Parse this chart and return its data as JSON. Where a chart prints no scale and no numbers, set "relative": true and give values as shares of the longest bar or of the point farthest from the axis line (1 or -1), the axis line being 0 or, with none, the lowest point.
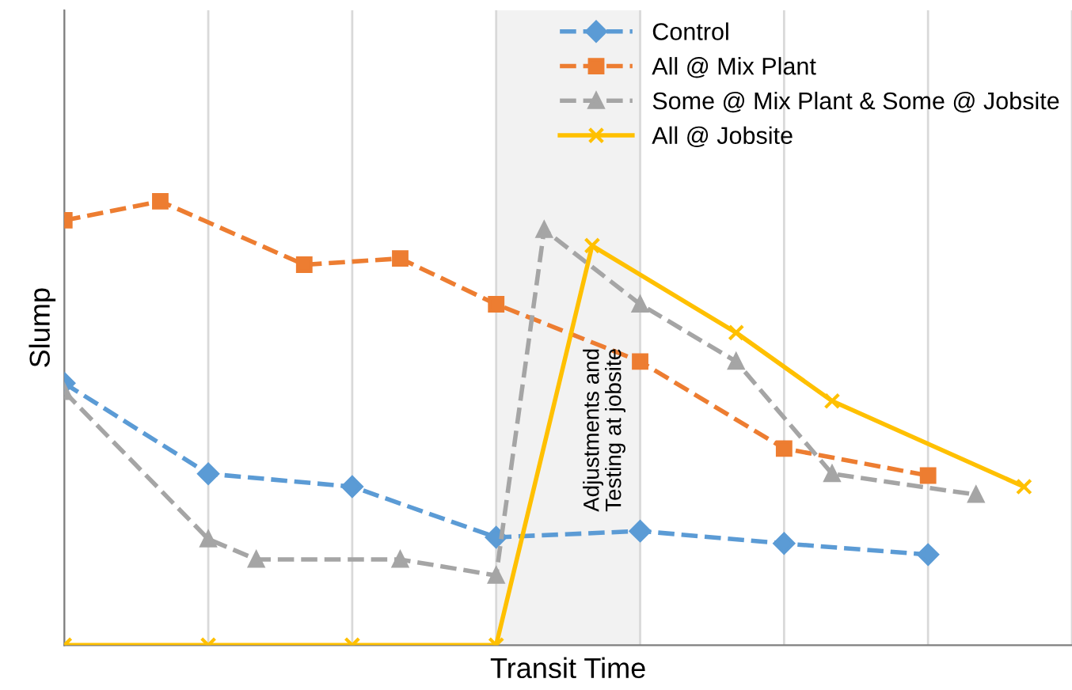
{
  "chart_data": {
    "type": "line",
    "relative": true,
    "xlabel": "Transit Time",
    "ylabel": "Slump",
    "categories": [
      null,
      null,
      null,
      null,
      null,
      null,
      null,
      null,
      null,
      null,
      null,
      null,
      null,
      null,
      null,
      null,
      null,
      null,
      null,
      null,
      null,
      null
    ],
    "grid": "x",
    "legend": "top right",
    "annotations": [
      "Adjustments and Testing at jobsite"
    ],
    "series": [
      {
        "name": "Control",
        "color": "#5b9bd5",
        "marker": "diamond",
        "line_style": "dashed",
        "values": [
          0.59,
          null,
          null,
          0.386,
          null,
          null,
          0.357,
          null,
          null,
          0.243,
          null,
          null,
          0.257,
          null,
          null,
          0.229,
          null,
          null,
          0.204,
          null,
          null,
          null
        ]
      },
      {
        "name": "All @ Mix Plant",
        "color": "#ed7d31",
        "marker": "square",
        "line_style": "dashed",
        "values": [
          0.957,
          null,
          1,
          null,
          null,
          0.857,
          null,
          0.871,
          null,
          0.768,
          null,
          null,
          0.639,
          null,
          null,
          0.443,
          null,
          null,
          0.382,
          null,
          null,
          null
        ]
      },
      {
        "name": "Some @ Mix Plant & Some @ Jobsite",
        "color": "#a5a5a5",
        "marker": "triangle",
        "line_style": "dashed",
        "values": [
          0.571,
          null,
          null,
          0.239,
          0.193,
          null,
          null,
          0.193,
          null,
          0.157,
          0.936,
          null,
          0.768,
          null,
          0.639,
          null,
          0.386,
          null,
          null,
          0.339,
          null,
          null
        ]
      },
      {
        "name": "All @ Jobsite",
        "color": "#ffc000",
        "marker": "cross",
        "line_style": "solid",
        "values": [
          0,
          null,
          null,
          0,
          null,
          null,
          0,
          null,
          null,
          0,
          null,
          0.9,
          null,
          null,
          0.704,
          null,
          0.55,
          null,
          null,
          null,
          0.357,
          null
        ]
      }
    ]
  }
}
